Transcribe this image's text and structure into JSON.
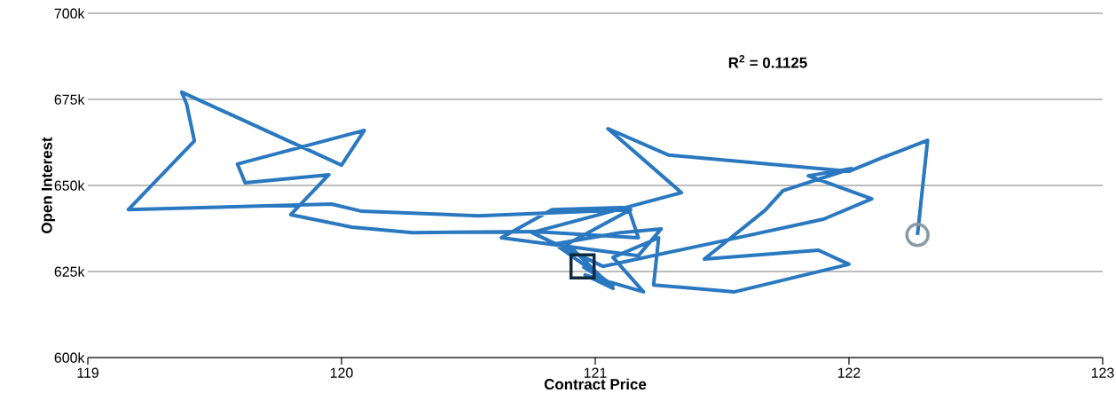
{
  "chart_data": {
    "type": "line",
    "xlabel": "Contract Price",
    "ylabel": "Open Interest",
    "annotations": [
      "R$^{2}$ = 0.1125"
    ],
    "xlim": [
      119,
      123
    ],
    "ylim": [
      600000,
      700000
    ],
    "xticks": [
      119,
      120,
      121,
      122,
      123
    ],
    "yticks": [
      {
        "value": 600000,
        "label": "600k"
      },
      {
        "value": 625000,
        "label": "625k"
      },
      {
        "value": 650000,
        "label": "650k"
      },
      {
        "value": 675000,
        "label": "675k"
      },
      {
        "value": 700000,
        "label": "700k"
      }
    ],
    "grid": "y",
    "series": [
      {
        "color": "#2a78c0",
        "x": [
          120.95,
          121.07,
          120.84,
          121.1,
          121.26,
          121.17,
          120.63,
          120.83,
          121.13,
          121.17,
          120.76,
          120.28,
          120.04,
          119.8,
          119.95,
          119.62,
          119.59,
          120.09,
          120.0,
          119.37,
          119.39,
          119.42,
          119.16,
          119.96,
          120.08,
          120.54,
          121.14,
          120.89,
          121.07,
          120.96,
          121.19,
          121.07,
          121.25,
          121.23,
          121.55,
          122.0,
          121.88,
          121.43,
          121.67,
          121.74,
          122.01,
          121.84,
          122.09,
          121.9,
          121.53,
          121.03,
          120.75,
          121.34,
          121.05,
          121.29,
          122.0,
          122.13,
          122.31,
          122.27
        ],
        "values": [
          626500,
          621000,
          633000,
          636300,
          637400,
          629600,
          634800,
          643000,
          643600,
          634800,
          636600,
          636300,
          637900,
          641500,
          653100,
          650800,
          656200,
          666000,
          655900,
          677100,
          673500,
          662900,
          643000,
          644600,
          642500,
          641200,
          643000,
          633000,
          620100,
          624000,
          619100,
          629100,
          634800,
          621100,
          619100,
          627100,
          631200,
          628600,
          642800,
          648500,
          654900,
          652800,
          646100,
          640200,
          634300,
          626500,
          636300,
          647900,
          666500,
          658800,
          654100,
          658000,
          663100,
          635600
        ]
      },
      {
        "type": "scatter",
        "marker": "square",
        "color": "#0f2a40",
        "x": [
          120.95
        ],
        "values": [
          626500
        ]
      },
      {
        "type": "scatter",
        "marker": "circle",
        "color": "#8a9aa5",
        "x": [
          122.27
        ],
        "values": [
          635600
        ]
      }
    ]
  }
}
